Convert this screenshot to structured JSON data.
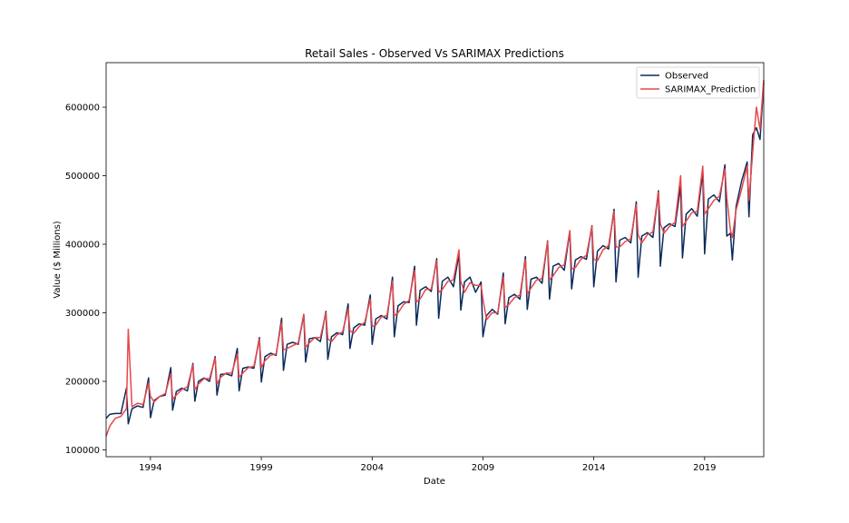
{
  "chart_data": {
    "type": "line",
    "title": "Retail Sales - Observed Vs SARIMAX Predictions",
    "xlabel": "Date",
    "ylabel": "Value ($ Millions)",
    "xlim": [
      "1992-01",
      "2021-09"
    ],
    "ylim": [
      90000,
      665000
    ],
    "x_ticks": [
      "1994",
      "1999",
      "2004",
      "2009",
      "2014",
      "2019"
    ],
    "y_ticks": [
      100000,
      200000,
      300000,
      400000,
      500000,
      600000
    ],
    "grid": false,
    "legend_position": "top-right",
    "x": [
      "1992-01",
      "1992-03",
      "1992-06",
      "1992-09",
      "1992-12",
      "1993-01",
      "1993-03",
      "1993-06",
      "1993-09",
      "1993-12",
      "1994-01",
      "1994-03",
      "1994-06",
      "1994-09",
      "1994-12",
      "1995-01",
      "1995-03",
      "1995-06",
      "1995-09",
      "1995-12",
      "1996-01",
      "1996-03",
      "1996-06",
      "1996-09",
      "1996-12",
      "1997-01",
      "1997-03",
      "1997-06",
      "1997-09",
      "1997-12",
      "1998-01",
      "1998-03",
      "1998-06",
      "1998-09",
      "1998-12",
      "1999-01",
      "1999-03",
      "1999-06",
      "1999-09",
      "1999-12",
      "2000-01",
      "2000-03",
      "2000-06",
      "2000-09",
      "2000-12",
      "2001-01",
      "2001-03",
      "2001-06",
      "2001-09",
      "2001-12",
      "2002-01",
      "2002-03",
      "2002-06",
      "2002-09",
      "2002-12",
      "2003-01",
      "2003-03",
      "2003-06",
      "2003-09",
      "2003-12",
      "2004-01",
      "2004-03",
      "2004-06",
      "2004-09",
      "2004-12",
      "2005-01",
      "2005-03",
      "2005-06",
      "2005-09",
      "2005-12",
      "2006-01",
      "2006-03",
      "2006-06",
      "2006-09",
      "2006-12",
      "2007-01",
      "2007-03",
      "2007-06",
      "2007-09",
      "2007-12",
      "2008-01",
      "2008-03",
      "2008-06",
      "2008-09",
      "2008-12",
      "2009-01",
      "2009-03",
      "2009-06",
      "2009-09",
      "2009-12",
      "2010-01",
      "2010-03",
      "2010-06",
      "2010-09",
      "2010-12",
      "2011-01",
      "2011-03",
      "2011-06",
      "2011-09",
      "2011-12",
      "2012-01",
      "2012-03",
      "2012-06",
      "2012-09",
      "2012-12",
      "2013-01",
      "2013-03",
      "2013-06",
      "2013-09",
      "2013-12",
      "2014-01",
      "2014-03",
      "2014-06",
      "2014-09",
      "2014-12",
      "2015-01",
      "2015-03",
      "2015-06",
      "2015-09",
      "2015-12",
      "2016-01",
      "2016-03",
      "2016-06",
      "2016-09",
      "2016-12",
      "2017-01",
      "2017-03",
      "2017-06",
      "2017-09",
      "2017-12",
      "2018-01",
      "2018-03",
      "2018-06",
      "2018-09",
      "2018-12",
      "2019-01",
      "2019-03",
      "2019-06",
      "2019-09",
      "2019-12",
      "2020-01",
      "2020-03",
      "2020-04",
      "2020-06",
      "2020-09",
      "2020-12",
      "2021-01",
      "2021-03",
      "2021-05",
      "2021-07",
      "2021-09"
    ],
    "series": [
      {
        "name": "Observed",
        "color": "#0b2a5b",
        "values": [
          146000,
          152000,
          153000,
          153000,
          190000,
          138000,
          160000,
          164000,
          162000,
          205000,
          147000,
          172000,
          178000,
          180000,
          220000,
          158000,
          185000,
          190000,
          186000,
          226000,
          171000,
          200000,
          205000,
          200000,
          236000,
          180000,
          210000,
          211000,
          208000,
          248000,
          186000,
          219000,
          221000,
          219000,
          264000,
          199000,
          236000,
          241000,
          238000,
          292000,
          216000,
          254000,
          257000,
          254000,
          297000,
          228000,
          262000,
          264000,
          258000,
          302000,
          232000,
          265000,
          271000,
          268000,
          313000,
          248000,
          278000,
          284000,
          282000,
          326000,
          254000,
          291000,
          296000,
          291000,
          352000,
          265000,
          310000,
          316000,
          315000,
          368000,
          282000,
          333000,
          338000,
          331000,
          379000,
          292000,
          346000,
          352000,
          338000,
          386000,
          304000,
          345000,
          352000,
          330000,
          345000,
          265000,
          296000,
          305000,
          298000,
          358000,
          284000,
          322000,
          327000,
          320000,
          382000,
          305000,
          349000,
          352000,
          343000,
          405000,
          320000,
          368000,
          372000,
          362000,
          419000,
          335000,
          377000,
          382000,
          378000,
          427000,
          338000,
          390000,
          398000,
          393000,
          451000,
          345000,
          406000,
          410000,
          402000,
          462000,
          352000,
          412000,
          417000,
          410000,
          478000,
          368000,
          424000,
          430000,
          426000,
          485000,
          380000,
          444000,
          452000,
          441000,
          505000,
          386000,
          466000,
          472000,
          462000,
          516000,
          412000,
          416000,
          377000,
          455000,
          492000,
          520000,
          440000,
          560000,
          570000,
          553000,
          636000
        ]
      },
      {
        "name": "SARIMAX_Prediction",
        "color": "#e8474a",
        "values": [
          120000,
          135000,
          146000,
          149000,
          160000,
          276000,
          163000,
          168000,
          166000,
          198000,
          178000,
          170000,
          178000,
          182000,
          211000,
          174000,
          180000,
          188000,
          192000,
          224000,
          188000,
          196000,
          204000,
          204000,
          234000,
          196000,
          206000,
          212000,
          212000,
          240000,
          206000,
          212000,
          220000,
          222000,
          262000,
          220000,
          230000,
          238000,
          240000,
          286000,
          246000,
          248000,
          252000,
          256000,
          298000,
          250000,
          256000,
          264000,
          264000,
          300000,
          262000,
          258000,
          268000,
          272000,
          306000,
          274000,
          270000,
          280000,
          286000,
          320000,
          280000,
          282000,
          294000,
          296000,
          346000,
          296000,
          300000,
          312000,
          318000,
          362000,
          316000,
          320000,
          334000,
          334000,
          376000,
          330000,
          334000,
          346000,
          348000,
          392000,
          346000,
          330000,
          344000,
          340000,
          340000,
          320000,
          290000,
          300000,
          300000,
          352000,
          308000,
          312000,
          322000,
          326000,
          378000,
          328000,
          336000,
          348000,
          350000,
          404000,
          348000,
          354000,
          366000,
          370000,
          420000,
          364000,
          366000,
          378000,
          384000,
          426000,
          378000,
          376000,
          392000,
          398000,
          448000,
          396000,
          396000,
          404000,
          408000,
          458000,
          414000,
          402000,
          414000,
          418000,
          476000,
          430000,
          416000,
          426000,
          432000,
          500000,
          426000,
          434000,
          446000,
          448000,
          514000,
          444000,
          452000,
          464000,
          470000,
          510000,
          468000,
          420000,
          410000,
          450000,
          480000,
          514000,
          464000,
          534000,
          600000,
          568000,
          640000
        ]
      }
    ]
  }
}
